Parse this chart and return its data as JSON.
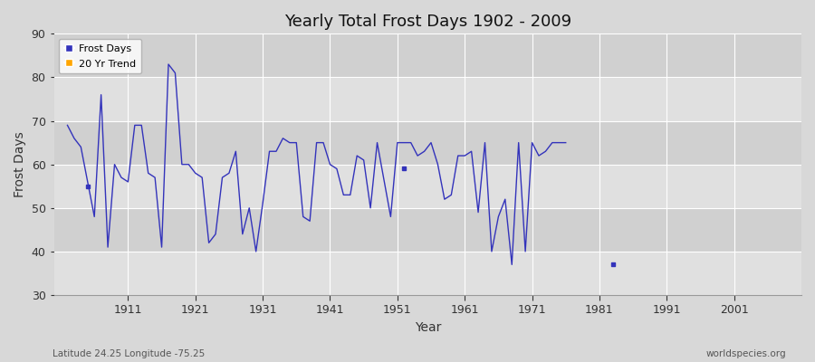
{
  "title": "Yearly Total Frost Days 1902 - 2009",
  "xlabel": "Year",
  "ylabel": "Frost Days",
  "subtitle_left": "Latitude 24.25 Longitude -75.25",
  "subtitle_right": "worldspecies.org",
  "ylim": [
    30,
    90
  ],
  "xlim": [
    1900,
    2011
  ],
  "line_color": "#3333bb",
  "trend_color": "#FFA500",
  "bg_color": "#d8d8d8",
  "band_light": "#dcdcdc",
  "band_dark": "#c8c8c8",
  "grid_color": "#ffffff",
  "yticks": [
    30,
    40,
    50,
    60,
    70,
    80,
    90
  ],
  "xticks": [
    1911,
    1921,
    1931,
    1941,
    1951,
    1961,
    1971,
    1981,
    1991,
    2001
  ],
  "connected_years": [
    1902,
    1903,
    1904,
    1906,
    1907,
    1908,
    1909,
    1910,
    1911,
    1912,
    1913,
    1914,
    1915,
    1916,
    1917,
    1918,
    1919,
    1920,
    1921,
    1922,
    1923,
    1924,
    1925,
    1926,
    1927,
    1928,
    1929,
    1930,
    1931,
    1932,
    1933,
    1934,
    1935,
    1936,
    1937,
    1938,
    1939,
    1940,
    1941,
    1942,
    1943,
    1944,
    1945,
    1946,
    1947,
    1948,
    1950,
    1951,
    1953,
    1954,
    1955,
    1956,
    1957,
    1958,
    1959,
    1960,
    1961,
    1962,
    1963,
    1964,
    1965,
    1966,
    1967,
    1968,
    1969,
    1970,
    1971,
    1972,
    1973,
    1974,
    1975,
    1976
  ],
  "connected_values": [
    69,
    66,
    64,
    48,
    76,
    41,
    60,
    57,
    56,
    69,
    69,
    58,
    57,
    41,
    83,
    81,
    60,
    60,
    58,
    57,
    42,
    44,
    57,
    58,
    63,
    44,
    50,
    40,
    51,
    63,
    63,
    66,
    65,
    65,
    48,
    47,
    65,
    65,
    60,
    59,
    53,
    53,
    62,
    61,
    50,
    65,
    48,
    65,
    65,
    62,
    63,
    65,
    60,
    52,
    53,
    62,
    62,
    63,
    49,
    65,
    40,
    48,
    52,
    37,
    65,
    40,
    65,
    62,
    63,
    65,
    65,
    65
  ],
  "isolated_years": [
    1905,
    1952,
    1983
  ],
  "isolated_values": [
    55,
    59,
    37
  ]
}
